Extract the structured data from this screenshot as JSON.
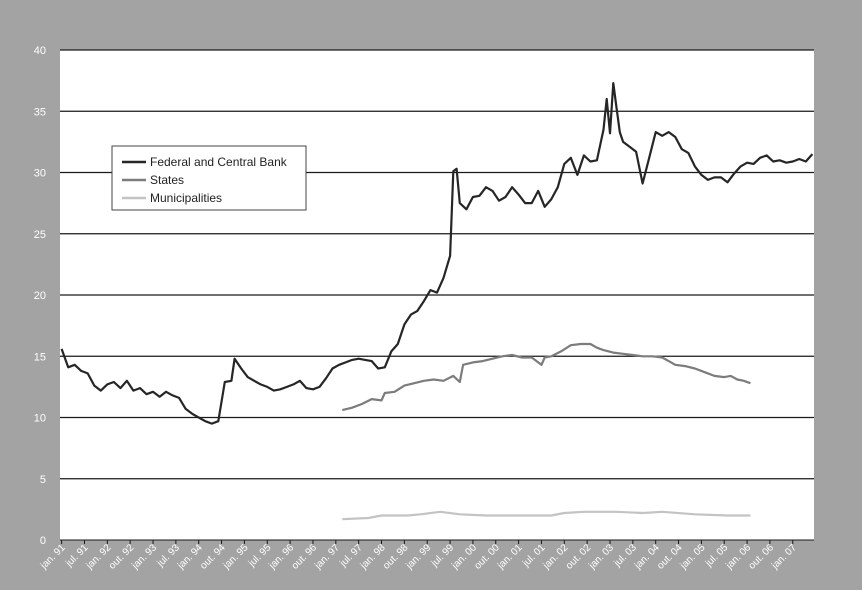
{
  "chart_data": {
    "type": "line",
    "x_start": "jan. 91",
    "x_step": "month",
    "ylim": [
      0,
      40
    ],
    "yticks": [
      0,
      5,
      10,
      15,
      20,
      25,
      30,
      35,
      40
    ],
    "xtick_labels": [
      "jan. 91",
      "jul. 91",
      "jan. 92",
      "out. 92",
      "jan. 93",
      "jul. 93",
      "jan. 94",
      "out. 94",
      "jan. 95",
      "jul. 95",
      "jan. 96",
      "out. 96",
      "jan. 97",
      "jul. 97",
      "jan. 98",
      "out. 98",
      "jan. 99",
      "jul. 99",
      "jan. 00",
      "out. 00",
      "jan. 01",
      "jul. 01",
      "jan. 02",
      "out. 02",
      "jan. 03",
      "jul. 03",
      "jan. 04",
      "out. 04",
      "jan. 05",
      "jul. 05",
      "jan. 06",
      "out. 06",
      "jan. 07"
    ],
    "grid": true,
    "legend_position": "upper-left",
    "colors": {
      "background": "#a3a3a3",
      "plot_area": "#ffffff",
      "federal": "#262626",
      "states": "#7c7c7c",
      "municipalities": "#c3c3c3"
    },
    "series": [
      {
        "name": "Federal and Central Bank",
        "points": [
          [
            0,
            15.6
          ],
          [
            2,
            14.1
          ],
          [
            4,
            14.3
          ],
          [
            6,
            13.8
          ],
          [
            8,
            13.6
          ],
          [
            10,
            12.6
          ],
          [
            12,
            12.2
          ],
          [
            14,
            12.7
          ],
          [
            16,
            12.9
          ],
          [
            18,
            12.4
          ],
          [
            20,
            13.0
          ],
          [
            22,
            12.2
          ],
          [
            24,
            12.4
          ],
          [
            26,
            11.9
          ],
          [
            28,
            12.1
          ],
          [
            30,
            11.7
          ],
          [
            32,
            12.1
          ],
          [
            34,
            11.8
          ],
          [
            36,
            11.6
          ],
          [
            38,
            10.7
          ],
          [
            40,
            10.3
          ],
          [
            42,
            10.0
          ],
          [
            44,
            9.7
          ],
          [
            46,
            9.5
          ],
          [
            48,
            9.7
          ],
          [
            50,
            12.9
          ],
          [
            52,
            13.0
          ],
          [
            53,
            14.8
          ],
          [
            55,
            14.0
          ],
          [
            57,
            13.3
          ],
          [
            59,
            13.0
          ],
          [
            61,
            12.7
          ],
          [
            63,
            12.5
          ],
          [
            65,
            12.2
          ],
          [
            67,
            12.3
          ],
          [
            69,
            12.5
          ],
          [
            71,
            12.7
          ],
          [
            73,
            13.0
          ],
          [
            75,
            12.4
          ],
          [
            77,
            12.3
          ],
          [
            79,
            12.5
          ],
          [
            81,
            13.2
          ],
          [
            83,
            14.0
          ],
          [
            85,
            14.3
          ],
          [
            87,
            14.5
          ],
          [
            89,
            14.7
          ],
          [
            91,
            14.8
          ],
          [
            93,
            14.7
          ],
          [
            95,
            14.6
          ],
          [
            97,
            14.0
          ],
          [
            99,
            14.1
          ],
          [
            101,
            15.4
          ],
          [
            103,
            16.0
          ],
          [
            105,
            17.6
          ],
          [
            107,
            18.4
          ],
          [
            109,
            18.7
          ],
          [
            111,
            19.5
          ],
          [
            113,
            20.4
          ],
          [
            115,
            20.2
          ],
          [
            117,
            21.4
          ],
          [
            119,
            23.2
          ],
          [
            120,
            30.1
          ],
          [
            121,
            30.3
          ],
          [
            122,
            27.5
          ],
          [
            124,
            27.0
          ],
          [
            126,
            28.0
          ],
          [
            128,
            28.1
          ],
          [
            130,
            28.8
          ],
          [
            132,
            28.5
          ],
          [
            134,
            27.7
          ],
          [
            136,
            28.0
          ],
          [
            138,
            28.8
          ],
          [
            140,
            28.2
          ],
          [
            142,
            27.5
          ],
          [
            144,
            27.5
          ],
          [
            146,
            28.5
          ],
          [
            148,
            27.2
          ],
          [
            150,
            27.8
          ],
          [
            152,
            28.8
          ],
          [
            154,
            30.7
          ],
          [
            156,
            31.2
          ],
          [
            158,
            29.8
          ],
          [
            160,
            31.4
          ],
          [
            162,
            30.9
          ],
          [
            164,
            31.0
          ],
          [
            166,
            33.5
          ],
          [
            167,
            36.0
          ],
          [
            168,
            33.2
          ],
          [
            169,
            37.3
          ],
          [
            170,
            35.3
          ],
          [
            171,
            33.3
          ],
          [
            172,
            32.5
          ],
          [
            174,
            32.1
          ],
          [
            176,
            31.7
          ],
          [
            178,
            29.1
          ],
          [
            180,
            31.2
          ],
          [
            182,
            33.3
          ],
          [
            184,
            33.0
          ],
          [
            186,
            33.3
          ],
          [
            188,
            32.9
          ],
          [
            190,
            31.9
          ],
          [
            192,
            31.6
          ],
          [
            194,
            30.5
          ],
          [
            196,
            29.8
          ],
          [
            198,
            29.4
          ],
          [
            200,
            29.6
          ],
          [
            202,
            29.6
          ],
          [
            204,
            29.2
          ],
          [
            206,
            29.9
          ],
          [
            208,
            30.5
          ],
          [
            210,
            30.8
          ],
          [
            212,
            30.7
          ],
          [
            214,
            31.2
          ],
          [
            216,
            31.4
          ],
          [
            218,
            30.9
          ],
          [
            220,
            31.0
          ],
          [
            222,
            30.8
          ],
          [
            224,
            30.9
          ],
          [
            226,
            31.1
          ],
          [
            228,
            30.9
          ],
          [
            230,
            31.5
          ]
        ]
      },
      {
        "name": "States",
        "points": [
          [
            86,
            10.6
          ],
          [
            89,
            10.8
          ],
          [
            92,
            11.1
          ],
          [
            95,
            11.5
          ],
          [
            98,
            11.4
          ],
          [
            99,
            12.0
          ],
          [
            102,
            12.1
          ],
          [
            105,
            12.6
          ],
          [
            108,
            12.8
          ],
          [
            111,
            13.0
          ],
          [
            114,
            13.1
          ],
          [
            117,
            13.0
          ],
          [
            120,
            13.4
          ],
          [
            122,
            12.9
          ],
          [
            123,
            14.3
          ],
          [
            126,
            14.5
          ],
          [
            129,
            14.6
          ],
          [
            132,
            14.8
          ],
          [
            135,
            15.0
          ],
          [
            138,
            15.1
          ],
          [
            141,
            14.9
          ],
          [
            144,
            14.9
          ],
          [
            146,
            14.5
          ],
          [
            147,
            14.3
          ],
          [
            148,
            14.9
          ],
          [
            150,
            15.0
          ],
          [
            153,
            15.4
          ],
          [
            156,
            15.9
          ],
          [
            159,
            16.0
          ],
          [
            162,
            16.0
          ],
          [
            164,
            15.7
          ],
          [
            166,
            15.5
          ],
          [
            169,
            15.3
          ],
          [
            172,
            15.2
          ],
          [
            175,
            15.1
          ],
          [
            178,
            15.0
          ],
          [
            181,
            15.0
          ],
          [
            184,
            14.9
          ],
          [
            186,
            14.6
          ],
          [
            188,
            14.3
          ],
          [
            191,
            14.2
          ],
          [
            194,
            14.0
          ],
          [
            197,
            13.7
          ],
          [
            200,
            13.4
          ],
          [
            203,
            13.3
          ],
          [
            205,
            13.4
          ],
          [
            207,
            13.1
          ],
          [
            209,
            13.0
          ],
          [
            211,
            12.8
          ]
        ]
      },
      {
        "name": "Municipalities",
        "points": [
          [
            86,
            1.7
          ],
          [
            94,
            1.8
          ],
          [
            98,
            2.0
          ],
          [
            106,
            2.0
          ],
          [
            110,
            2.1
          ],
          [
            116,
            2.3
          ],
          [
            122,
            2.1
          ],
          [
            130,
            2.0
          ],
          [
            140,
            2.0
          ],
          [
            150,
            2.0
          ],
          [
            154,
            2.2
          ],
          [
            160,
            2.3
          ],
          [
            170,
            2.3
          ],
          [
            178,
            2.2
          ],
          [
            184,
            2.3
          ],
          [
            194,
            2.1
          ],
          [
            204,
            2.0
          ],
          [
            211,
            2.0
          ]
        ]
      }
    ]
  }
}
